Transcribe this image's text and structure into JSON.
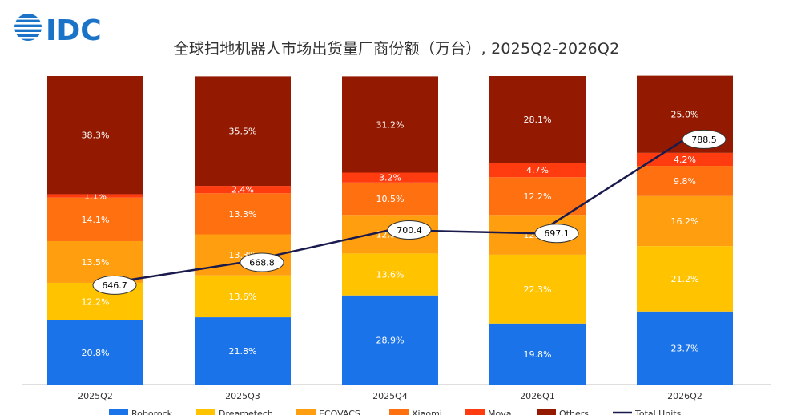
{
  "brand": {
    "logo_text": "IDC",
    "logo_color": "#1a73c7"
  },
  "chart_data": {
    "type": "bar",
    "stacked": true,
    "percent": true,
    "title": "全球扫地机器人市场出货量厂商份额（万台）, 2025Q2-2026Q2",
    "categories": [
      "2025Q2",
      "2025Q3",
      "2025Q4",
      "2026Q1",
      "2026Q2"
    ],
    "series": [
      {
        "name": "Roborock",
        "color": "#1a73e8",
        "values": [
          20.8,
          21.8,
          28.9,
          19.8,
          23.7
        ]
      },
      {
        "name": "Dreametech",
        "color": "#ffc300",
        "values": [
          12.2,
          13.6,
          13.6,
          22.3,
          21.2
        ]
      },
      {
        "name": "ECOVACS",
        "color": "#ff9e0f",
        "values": [
          13.5,
          13.3,
          12.5,
          12.9,
          16.2
        ]
      },
      {
        "name": "Xiaomi",
        "color": "#ff7011",
        "values": [
          14.1,
          13.3,
          10.5,
          12.2,
          9.8
        ]
      },
      {
        "name": "Mova",
        "color": "#ff3b10",
        "values": [
          1.1,
          2.4,
          3.2,
          4.7,
          4.2
        ]
      },
      {
        "name": "Others",
        "color": "#931a00",
        "values": [
          38.3,
          35.5,
          31.2,
          28.1,
          25.0
        ]
      }
    ],
    "line": {
      "name": "Total Units",
      "color": "#1a1a4d",
      "values": [
        646.7,
        668.8,
        700.4,
        697.1,
        788.5
      ]
    },
    "ylim": [
      0,
      100
    ],
    "grid": false,
    "legend_position": "bottom"
  }
}
